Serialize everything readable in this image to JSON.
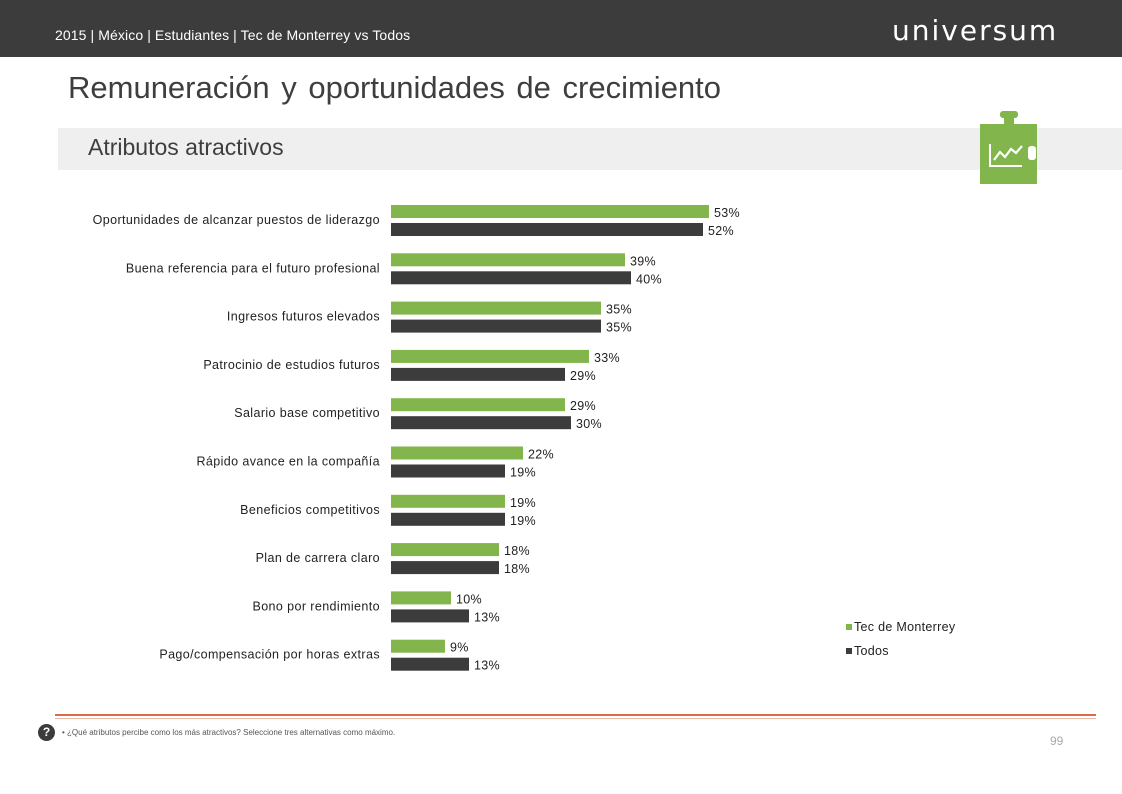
{
  "header": {
    "breadcrumb": "2015 | México | Estudiantes | Tec de Monterrey vs Todos",
    "logo": "universum"
  },
  "title": "Remuneración y oportunidades de crecimiento",
  "subtitle": "Atributos atractivos",
  "colors": {
    "series1": "#82b54b",
    "series2": "#3c3c3c",
    "accent": "#d7704a",
    "icon_bg": "#82b54b"
  },
  "icon": "growth-chart-puzzle-icon",
  "chart_data": {
    "type": "bar",
    "orientation": "horizontal",
    "categories": [
      "Oportunidades de alcanzar puestos de liderazgo",
      "Buena referencia para el futuro profesional",
      "Ingresos futuros elevados",
      "Patrocinio de estudios futuros",
      "Salario base competitivo",
      "Rápido avance en la compañía",
      "Beneficios competitivos",
      "Plan de carrera claro",
      "Bono por rendimiento",
      "Pago/compensación por horas extras"
    ],
    "series": [
      {
        "name": "Tec de Monterrey",
        "values": [
          53,
          39,
          35,
          33,
          29,
          22,
          19,
          18,
          10,
          9
        ],
        "color": "#82b54b"
      },
      {
        "name": "Todos",
        "values": [
          52,
          40,
          35,
          29,
          30,
          19,
          19,
          18,
          13,
          13
        ],
        "color": "#3c3c3c"
      }
    ],
    "value_suffix": "%",
    "xlim": [
      0,
      100
    ],
    "grid": false,
    "legend": "bottom-right"
  },
  "footer": {
    "help": "?",
    "note": "¿Qué atributos percibe como los más atractivos? Seleccione tres alternativas como máximo.",
    "page": "99"
  }
}
